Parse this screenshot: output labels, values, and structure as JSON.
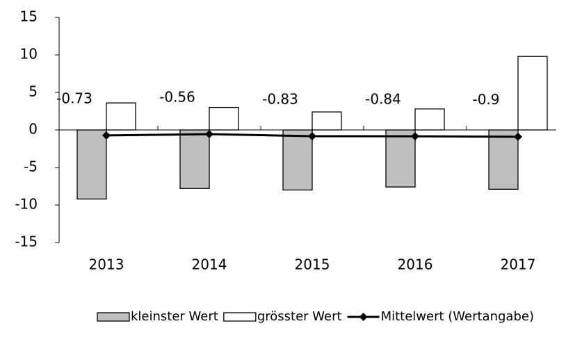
{
  "chart_data": {
    "type": "bar",
    "categories": [
      "2013",
      "2014",
      "2015",
      "2016",
      "2017"
    ],
    "series": [
      {
        "name": "kleinster Wert",
        "type": "bar",
        "color": "#bfbfbf",
        "values": [
          -9.2,
          -7.8,
          -8.0,
          -7.6,
          -7.9
        ]
      },
      {
        "name": "grösster Wert",
        "type": "bar",
        "color": "#ffffff",
        "values": [
          3.6,
          3.0,
          2.4,
          2.8,
          9.8
        ]
      },
      {
        "name": "Mittelwert (Wertangabe)",
        "type": "line",
        "color": "#000000",
        "values": [
          -0.73,
          -0.56,
          -0.83,
          -0.84,
          -0.9
        ]
      }
    ],
    "ylim": [
      -15,
      15
    ],
    "yticks": [
      -15,
      -10,
      -5,
      0,
      5,
      10,
      15
    ],
    "grid": false,
    "legend": "bottom"
  }
}
